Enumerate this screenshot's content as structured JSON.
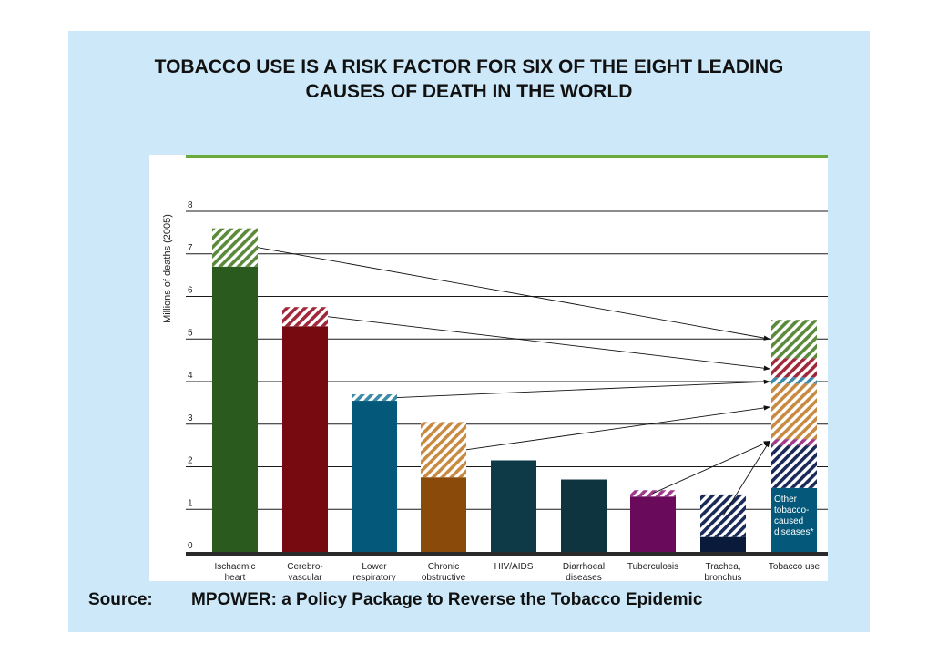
{
  "title": {
    "line1": "TOBACCO USE IS A RISK FACTOR FOR SIX OF THE EIGHT LEADING",
    "line2": "CAUSES OF DEATH IN THE WORLD"
  },
  "source": {
    "label": "Source:",
    "text": "MPOWER: a Policy Package to Reverse the Tobacco  Epidemic"
  },
  "chart_data": {
    "type": "bar",
    "ylabel": "Millions of deaths (2005)",
    "ylim": [
      0,
      8
    ],
    "yticks": [
      "0",
      "1",
      "2",
      "3",
      "4",
      "5",
      "6",
      "7",
      "8"
    ],
    "grid": true,
    "categories": [
      [
        "Ischaemic",
        "heart"
      ],
      [
        "Cerebro-",
        "vascular"
      ],
      [
        "Lower",
        "respiratory"
      ],
      [
        "Chronic",
        "obstructive"
      ],
      [
        "HIV/AIDS"
      ],
      [
        "Diarrhoeal",
        "diseases"
      ],
      [
        "Tuberculosis"
      ],
      [
        "Trachea,",
        "bronchus"
      ],
      [
        "Tobacco use"
      ]
    ],
    "series": [
      {
        "values": [
          6.7,
          5.3,
          3.55,
          1.75,
          2.15,
          1.7,
          1.3,
          0.35,
          1.5
        ]
      },
      {
        "values": [
          0.9,
          0.45,
          0.15,
          1.3,
          0,
          0,
          0.15,
          1.0,
          3.9
        ]
      }
    ],
    "bars": [
      {
        "solid": 6.7,
        "tobacco": 0.9,
        "color": "#2b5a1e",
        "hatch": "#5a8a3a"
      },
      {
        "solid": 5.3,
        "tobacco": 0.45,
        "color": "#760a10",
        "hatch": "#a0283a"
      },
      {
        "solid": 3.55,
        "tobacco": 0.15,
        "color": "#04587a",
        "hatch": "#3a8aa8"
      },
      {
        "solid": 1.75,
        "tobacco": 1.3,
        "color": "#8a4a0a",
        "hatch": "#c88a40"
      },
      {
        "solid": 2.15,
        "tobacco": 0,
        "color": "#0e3a48",
        "hatch": "#0e3a48"
      },
      {
        "solid": 1.7,
        "tobacco": 0,
        "color": "#0e3440",
        "hatch": "#0e3440"
      },
      {
        "solid": 1.3,
        "tobacco": 0.15,
        "color": "#6a0a5a",
        "hatch": "#a03a8a"
      },
      {
        "solid": 0.35,
        "tobacco": 1.0,
        "color": "#0a1a3a",
        "hatch": "#1a2a58"
      }
    ],
    "tobacco_use_stack": [
      {
        "from": 0,
        "to": 1.5,
        "solid": true,
        "color": "#04587a"
      },
      {
        "from": 1.5,
        "to": 2.5,
        "color": "#1a2a58"
      },
      {
        "from": 2.5,
        "to": 2.65,
        "color": "#a03a8a"
      },
      {
        "from": 2.65,
        "to": 3.95,
        "color": "#c88a40"
      },
      {
        "from": 3.95,
        "to": 4.1,
        "color": "#3a8aa8"
      },
      {
        "from": 4.1,
        "to": 4.55,
        "color": "#a0283a"
      },
      {
        "from": 4.55,
        "to": 5.45,
        "color": "#5a8a3a"
      }
    ],
    "annotations": {
      "other_tobacco": [
        "Other",
        "tobacco-",
        "caused",
        "diseases*"
      ]
    },
    "accent_color": "#6aaa3a"
  }
}
